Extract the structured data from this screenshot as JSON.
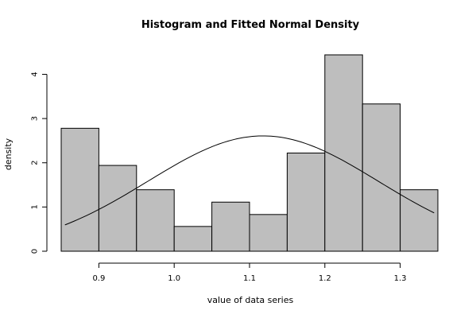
{
  "chart_data": {
    "type": "bar",
    "title": "Histogram and Fitted Normal Density",
    "xlabel": "value of data series",
    "ylabel": "density",
    "xlim": [
      0.85,
      1.35
    ],
    "ylim": [
      0,
      4.44
    ],
    "x_ticks": [
      "0.9",
      "1.0",
      "1.1",
      "1.2",
      "1.3"
    ],
    "y_ticks": [
      "0",
      "1",
      "2",
      "3",
      "4"
    ],
    "bins": [
      {
        "x0": 0.85,
        "x1": 0.9,
        "density": 2.78
      },
      {
        "x0": 0.9,
        "x1": 0.95,
        "density": 1.94
      },
      {
        "x0": 0.95,
        "x1": 1.0,
        "density": 1.39
      },
      {
        "x0": 1.0,
        "x1": 1.05,
        "density": 0.56
      },
      {
        "x0": 1.05,
        "x1": 1.1,
        "density": 1.11
      },
      {
        "x0": 1.1,
        "x1": 1.15,
        "density": 0.83
      },
      {
        "x0": 1.15,
        "x1": 1.2,
        "density": 2.22
      },
      {
        "x0": 1.2,
        "x1": 1.25,
        "density": 4.44
      },
      {
        "x0": 1.25,
        "x1": 1.3,
        "density": 3.33
      },
      {
        "x0": 1.3,
        "x1": 1.35,
        "density": 1.39
      }
    ],
    "fitted_normal": {
      "mean": 1.118,
      "sd": 0.153,
      "x_range": [
        0.855,
        1.345
      ]
    },
    "bar_fill": "#bebebe",
    "grid": false
  }
}
